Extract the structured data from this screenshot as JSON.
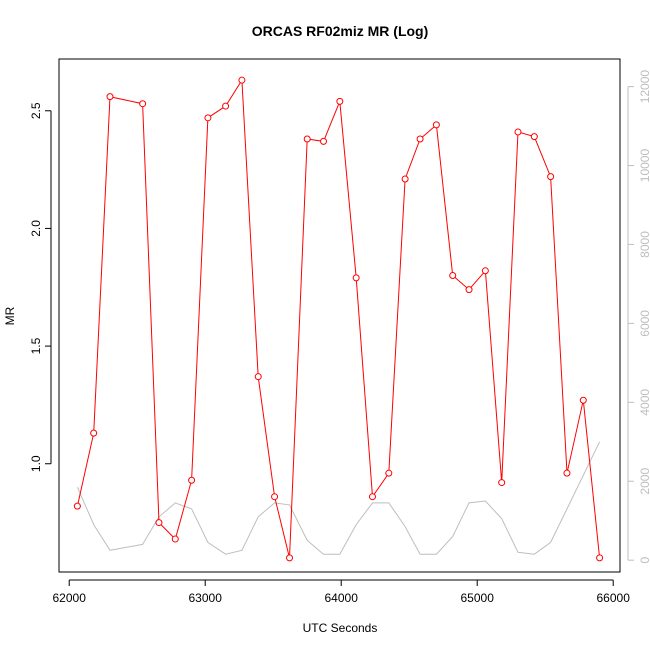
{
  "chart_data": {
    "type": "line",
    "title": "ORCAS RF02miz MR (Log)",
    "xlabel": "UTC Seconds",
    "ylabel": "MR",
    "xlim": [
      61925,
      66050
    ],
    "ylim": [
      0.54,
      2.72
    ],
    "y2lim": [
      -300,
      12700
    ],
    "x_ticks": [
      62000,
      63000,
      64000,
      65000,
      66000
    ],
    "y_ticks": [
      1.0,
      1.5,
      2.0,
      2.5
    ],
    "y_tick_labels": [
      "1.0",
      "1.5",
      "2.0",
      "2.5"
    ],
    "y2_ticks": [
      0,
      2000,
      4000,
      6000,
      8000,
      10000,
      12000
    ],
    "colors": {
      "primary": "#ff0000",
      "secondary": "#bebebe",
      "axis": "#000000"
    },
    "series": [
      {
        "axis": "left",
        "x": [
          62060,
          62180,
          62300,
          62540,
          62660,
          62780,
          62900,
          63020,
          63150,
          63270,
          63390,
          63510,
          63620,
          63750,
          63870,
          63990,
          64110,
          64230,
          64350,
          64470,
          64580,
          64700,
          64820,
          64940,
          65060,
          65180,
          65300,
          65420,
          65540,
          65660,
          65780,
          65900
        ],
        "values": [
          0.82,
          1.13,
          2.56,
          2.53,
          0.75,
          0.68,
          0.93,
          2.47,
          2.52,
          2.63,
          1.37,
          0.86,
          0.6,
          2.38,
          2.37,
          2.54,
          1.79,
          0.86,
          0.96,
          2.21,
          2.38,
          2.44,
          1.8,
          1.74,
          1.82,
          0.92,
          2.41,
          2.39,
          2.22,
          0.96,
          1.27,
          0.6
        ]
      },
      {
        "axis": "right",
        "x": [
          62060,
          62180,
          62300,
          62540,
          62660,
          62780,
          62900,
          63020,
          63150,
          63270,
          63390,
          63510,
          63620,
          63750,
          63870,
          63990,
          64110,
          64230,
          64350,
          64470,
          64580,
          64700,
          64820,
          64940,
          65060,
          65180,
          65300,
          65420,
          65540,
          65660,
          65780,
          65900
        ],
        "values": [
          1850,
          900,
          250,
          400,
          1100,
          1450,
          1300,
          450,
          150,
          250,
          1100,
          1450,
          1400,
          500,
          150,
          150,
          900,
          1450,
          1450,
          850,
          150,
          150,
          600,
          1450,
          1500,
          1050,
          200,
          150,
          450,
          1300,
          2150,
          3000
        ]
      }
    ]
  }
}
